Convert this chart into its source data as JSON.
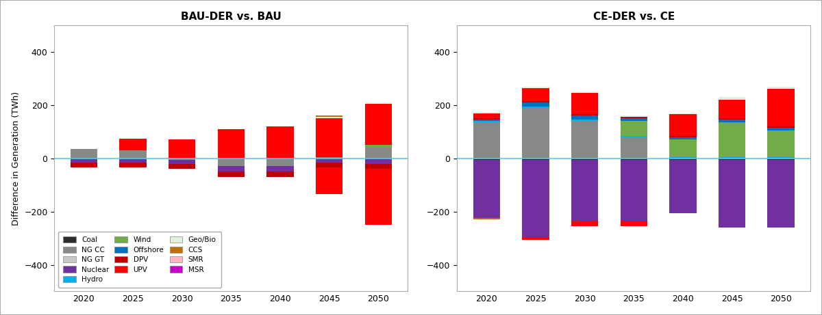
{
  "years": [
    2020,
    2025,
    2030,
    2035,
    2040,
    2045,
    2050
  ],
  "colors": {
    "Coal": "#2b2b2b",
    "NG CC": "#888888",
    "NG GT": "#c8c8c8",
    "Nuclear": "#7030a0",
    "Hydro": "#00b0f0",
    "Wind": "#70ad47",
    "Offshore": "#0070c0",
    "DPV": "#c00000",
    "UPV": "#ff0000",
    "Geo/Bio": "#e2efda",
    "CCS": "#c07000",
    "SMR": "#ffb6c1",
    "MSR": "#cc00cc"
  },
  "bau_pos": {
    "Coal": [
      0,
      0,
      0,
      0,
      0,
      0,
      0
    ],
    "NG CC": [
      35,
      30,
      0,
      0,
      0,
      5,
      40
    ],
    "NG GT": [
      0,
      0,
      0,
      0,
      0,
      0,
      0
    ],
    "Nuclear": [
      0,
      0,
      0,
      0,
      0,
      0,
      0
    ],
    "Hydro": [
      0,
      0,
      0,
      0,
      0,
      0,
      0
    ],
    "Wind": [
      0,
      0,
      0,
      0,
      0,
      0,
      10
    ],
    "Offshore": [
      0,
      0,
      0,
      0,
      0,
      0,
      0
    ],
    "DPV": [
      0,
      0,
      0,
      0,
      0,
      0,
      0
    ],
    "UPV": [
      0,
      45,
      70,
      110,
      120,
      145,
      155
    ],
    "Geo/Bio": [
      0,
      0,
      0,
      0,
      0,
      5,
      5
    ],
    "CCS": [
      0,
      0,
      0,
      0,
      0,
      5,
      0
    ],
    "SMR": [
      0,
      0,
      0,
      0,
      0,
      0,
      0
    ],
    "MSR": [
      0,
      0,
      0,
      0,
      0,
      0,
      0
    ]
  },
  "bau_neg": {
    "Coal": [
      0,
      0,
      0,
      0,
      0,
      0,
      0
    ],
    "NG CC": [
      0,
      0,
      -5,
      -30,
      -30,
      0,
      0
    ],
    "NG GT": [
      0,
      0,
      0,
      0,
      0,
      0,
      0
    ],
    "Nuclear": [
      -15,
      -15,
      -15,
      -20,
      -20,
      -15,
      -20
    ],
    "Hydro": [
      0,
      0,
      0,
      0,
      0,
      0,
      0
    ],
    "Wind": [
      0,
      0,
      0,
      0,
      0,
      0,
      0
    ],
    "Offshore": [
      0,
      0,
      0,
      0,
      0,
      0,
      0
    ],
    "DPV": [
      -20,
      -20,
      -20,
      -20,
      -20,
      -20,
      -20
    ],
    "UPV": [
      0,
      0,
      0,
      0,
      0,
      -100,
      -210
    ],
    "Geo/Bio": [
      0,
      0,
      0,
      0,
      0,
      0,
      0
    ],
    "CCS": [
      0,
      0,
      0,
      0,
      0,
      0,
      0
    ],
    "SMR": [
      0,
      0,
      0,
      0,
      0,
      0,
      0
    ],
    "MSR": [
      0,
      0,
      0,
      0,
      0,
      0,
      0
    ]
  },
  "ce_pos": {
    "Coal": [
      0,
      0,
      0,
      0,
      0,
      0,
      0
    ],
    "NG CC": [
      135,
      190,
      140,
      80,
      0,
      0,
      0
    ],
    "NG GT": [
      0,
      0,
      0,
      0,
      0,
      0,
      0
    ],
    "Nuclear": [
      0,
      0,
      0,
      0,
      0,
      0,
      0
    ],
    "Hydro": [
      5,
      5,
      5,
      5,
      5,
      5,
      5
    ],
    "Wind": [
      0,
      0,
      0,
      55,
      65,
      130,
      100
    ],
    "Offshore": [
      5,
      15,
      15,
      10,
      10,
      10,
      10
    ],
    "DPV": [
      5,
      5,
      5,
      5,
      5,
      5,
      5
    ],
    "UPV": [
      20,
      50,
      80,
      0,
      80,
      70,
      140
    ],
    "Geo/Bio": [
      5,
      5,
      5,
      5,
      5,
      10,
      10
    ],
    "CCS": [
      0,
      0,
      0,
      0,
      0,
      0,
      0
    ],
    "SMR": [
      0,
      0,
      0,
      0,
      0,
      0,
      0
    ],
    "MSR": [
      0,
      0,
      0,
      0,
      0,
      0,
      0
    ]
  },
  "ce_neg": {
    "Coal": [
      -5,
      -5,
      -5,
      -5,
      -5,
      -5,
      -5
    ],
    "NG CC": [
      0,
      0,
      0,
      0,
      0,
      0,
      0
    ],
    "NG GT": [
      0,
      0,
      0,
      0,
      0,
      0,
      0
    ],
    "Nuclear": [
      -220,
      -290,
      -230,
      -230,
      -200,
      -255,
      -255
    ],
    "Hydro": [
      0,
      0,
      0,
      0,
      0,
      0,
      0
    ],
    "Wind": [
      0,
      0,
      0,
      0,
      0,
      0,
      0
    ],
    "Offshore": [
      0,
      0,
      0,
      0,
      0,
      0,
      0
    ],
    "DPV": [
      0,
      0,
      0,
      0,
      0,
      0,
      0
    ],
    "UPV": [
      0,
      -10,
      -20,
      -20,
      0,
      0,
      0
    ],
    "Geo/Bio": [
      0,
      0,
      0,
      0,
      0,
      0,
      0
    ],
    "CCS": [
      -5,
      0,
      0,
      0,
      0,
      0,
      0
    ],
    "SMR": [
      0,
      0,
      0,
      0,
      0,
      0,
      0
    ],
    "MSR": [
      0,
      0,
      0,
      0,
      0,
      0,
      0
    ]
  },
  "title_bau": "BAU-DER vs. BAU",
  "title_ce": "CE-DER vs. CE",
  "ylabel": "Difference in Generation (TWh)",
  "ylim": [
    -500,
    500
  ],
  "yticks": [
    -400,
    -200,
    0,
    200,
    400
  ],
  "background_color": "#ffffff",
  "hline_color": "#5bc8e8",
  "legend_items": [
    [
      "Coal",
      "#2b2b2b"
    ],
    [
      "NG CC",
      "#888888"
    ],
    [
      "NG GT",
      "#c8c8c8"
    ],
    [
      "Nuclear",
      "#7030a0"
    ],
    [
      "Hydro",
      "#00b0f0"
    ],
    [
      "Wind",
      "#70ad47"
    ],
    [
      "Offshore",
      "#0070c0"
    ],
    [
      "DPV",
      "#c00000"
    ],
    [
      "UPV",
      "#ff0000"
    ],
    [
      "Geo/Bio",
      "#e2efda"
    ],
    [
      "CCS",
      "#c07000"
    ],
    [
      "SMR",
      "#ffb6c1"
    ],
    [
      "MSR",
      "#cc00cc"
    ]
  ]
}
